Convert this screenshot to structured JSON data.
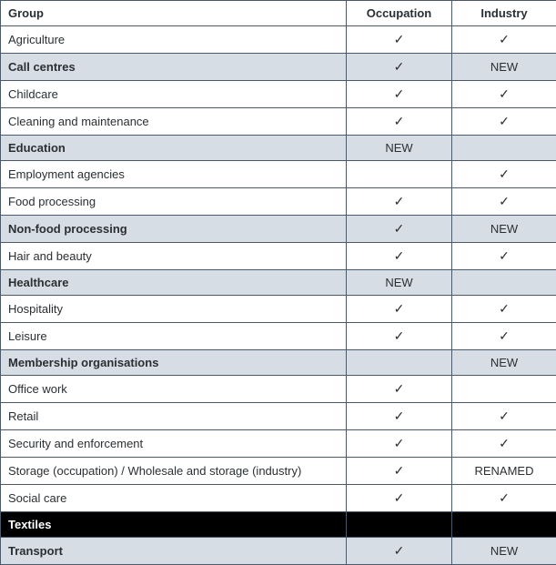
{
  "table": {
    "columns": {
      "group": "Group",
      "occupation": "Occupation",
      "industry": "Industry"
    },
    "col_widths": {
      "group": 380,
      "occupation": 116,
      "industry": 115
    },
    "header_bg": "#ffffff",
    "shaded_bg": "#d6dde4",
    "black_bg": "#000000",
    "border_color": "#4a5a6a",
    "checkmark": "✓",
    "rows": [
      {
        "group": "Agriculture",
        "occupation": "check",
        "industry": "check",
        "shaded": false
      },
      {
        "group": "Call centres",
        "occupation": "check",
        "industry": "NEW",
        "shaded": true
      },
      {
        "group": "Childcare",
        "occupation": "check",
        "industry": "check",
        "shaded": false
      },
      {
        "group": "Cleaning and maintenance",
        "occupation": "check",
        "industry": "check",
        "shaded": false
      },
      {
        "group": "Education",
        "occupation": "NEW",
        "industry": "",
        "shaded": true
      },
      {
        "group": "Employment agencies",
        "occupation": "",
        "industry": "check",
        "shaded": false
      },
      {
        "group": "Food processing",
        "occupation": "check",
        "industry": "check",
        "shaded": false
      },
      {
        "group": "Non-food processing",
        "occupation": "check",
        "industry": "NEW",
        "shaded": true
      },
      {
        "group": "Hair and beauty",
        "occupation": "check",
        "industry": "check",
        "shaded": false
      },
      {
        "group": "Healthcare",
        "occupation": "NEW",
        "industry": "",
        "shaded": true
      },
      {
        "group": "Hospitality",
        "occupation": "check",
        "industry": "check",
        "shaded": false
      },
      {
        "group": "Leisure",
        "occupation": "check",
        "industry": "check",
        "shaded": false
      },
      {
        "group": "Membership organisations",
        "occupation": "",
        "industry": "NEW",
        "shaded": true
      },
      {
        "group": "Office work",
        "occupation": "check",
        "industry": "",
        "shaded": false
      },
      {
        "group": "Retail",
        "occupation": "check",
        "industry": "check",
        "shaded": false
      },
      {
        "group": "Security and enforcement",
        "occupation": "check",
        "industry": "check",
        "shaded": false
      },
      {
        "group": "Storage (occupation) / Wholesale and storage (industry)",
        "occupation": "check",
        "industry": "RENAMED",
        "shaded": false
      },
      {
        "group": "Social care",
        "occupation": "check",
        "industry": "check",
        "shaded": false
      },
      {
        "group": "Textiles",
        "occupation": "",
        "industry": "",
        "black": true
      },
      {
        "group": "Transport",
        "occupation": "check",
        "industry": "NEW",
        "shaded": true
      }
    ]
  }
}
